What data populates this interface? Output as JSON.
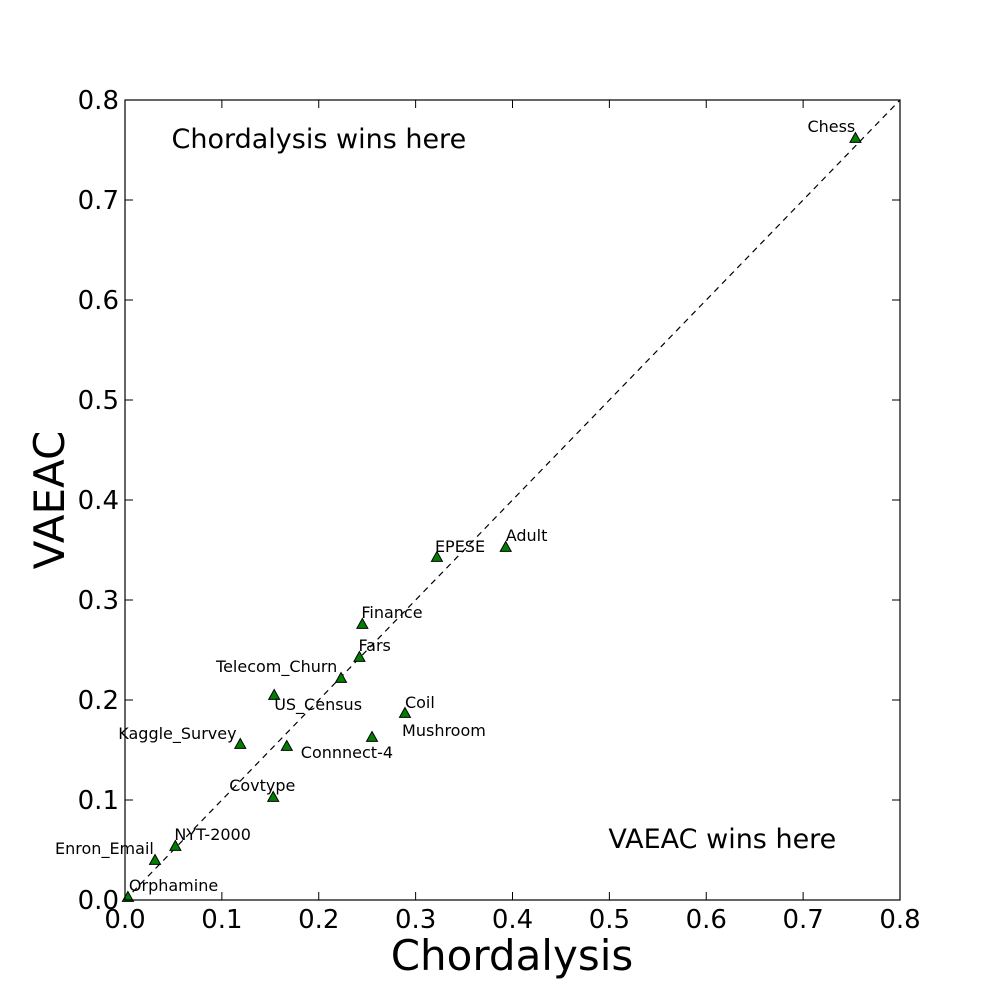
{
  "chart_data": {
    "type": "scatter",
    "title": "",
    "xlabel": "Chordalysis",
    "ylabel": "VAEAC",
    "xlim": [
      0.0,
      0.8
    ],
    "ylim": [
      0.0,
      0.8
    ],
    "xticks": [
      "0.0",
      "0.1",
      "0.2",
      "0.3",
      "0.4",
      "0.5",
      "0.6",
      "0.7",
      "0.8"
    ],
    "yticks": [
      "0.0",
      "0.1",
      "0.2",
      "0.3",
      "0.4",
      "0.5",
      "0.6",
      "0.7",
      "0.8"
    ],
    "grid": false,
    "diagonal_reference": {
      "from": [
        0.0,
        0.0
      ],
      "to": [
        0.8,
        0.8
      ],
      "style": "dashed"
    },
    "marker": {
      "shape": "triangle",
      "color": "#007f00",
      "edge": "#000000"
    },
    "annotations": [
      {
        "text": "Chordalysis wins here",
        "x": 0.048,
        "y": 0.752
      },
      {
        "text": "VAEAC wins here",
        "x": 0.499,
        "y": 0.052
      }
    ],
    "points": [
      {
        "label": "Chess",
        "x": 0.754,
        "y": 0.762
      },
      {
        "label": "Adult",
        "x": 0.393,
        "y": 0.353
      },
      {
        "label": "EPESE",
        "x": 0.322,
        "y": 0.343
      },
      {
        "label": "Finance",
        "x": 0.245,
        "y": 0.276
      },
      {
        "label": "Fars",
        "x": 0.242,
        "y": 0.243
      },
      {
        "label": "Telecom_Churn",
        "x": 0.223,
        "y": 0.222
      },
      {
        "label": "US_Census",
        "x": 0.154,
        "y": 0.205
      },
      {
        "label": "Coil",
        "x": 0.289,
        "y": 0.187
      },
      {
        "label": "Mushroom",
        "x": 0.255,
        "y": 0.163
      },
      {
        "label": "Kaggle_Survey",
        "x": 0.119,
        "y": 0.156
      },
      {
        "label": "Connnect-4",
        "x": 0.167,
        "y": 0.154
      },
      {
        "label": "Covtype",
        "x": 0.153,
        "y": 0.103
      },
      {
        "label": "NYT-2000",
        "x": 0.052,
        "y": 0.054
      },
      {
        "label": "Enron_Email",
        "x": 0.031,
        "y": 0.04
      },
      {
        "label": "Orphamine",
        "x": 0.003,
        "y": 0.003
      }
    ]
  }
}
